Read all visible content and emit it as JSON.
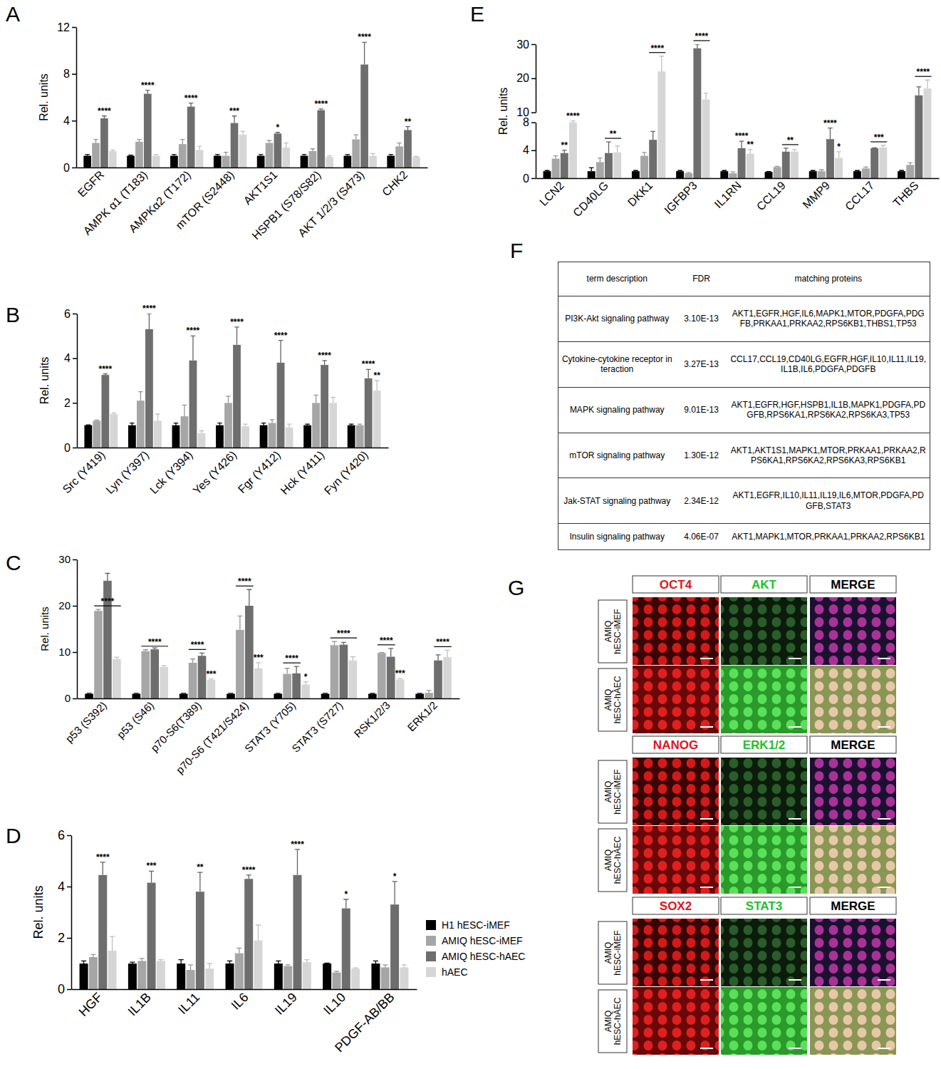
{
  "chart_data": [
    {
      "type": "bar",
      "title": "A",
      "y_label": "Rel. units",
      "categories": [
        "EGFR",
        "AMPK α1 (T183)",
        "AMPKα2 (T172)",
        "mTOR (S2448)",
        "AKT1S1",
        "HSPB1 (S78/S82)",
        "AKT 1/2/3 (S473)",
        "CHK2"
      ],
      "series": [
        {
          "color": "#000000",
          "values": [
            1.0,
            1.0,
            1.0,
            1.0,
            1.0,
            1.0,
            1.0,
            1.0
          ],
          "errors": [
            0.1,
            0.05,
            0.1,
            0.1,
            0.1,
            0.1,
            0.1,
            0.1
          ]
        },
        {
          "color": "#a6a6a6",
          "values": [
            2.1,
            2.2,
            2.0,
            1.0,
            2.1,
            1.4,
            2.4,
            1.8
          ],
          "errors": [
            0.3,
            0.2,
            0.4,
            0.3,
            0.2,
            0.2,
            0.4,
            0.3
          ]
        },
        {
          "color": "#6e6e6e",
          "values": [
            4.2,
            6.3,
            5.2,
            3.8,
            2.9,
            4.9,
            8.8,
            3.2
          ],
          "errors": [
            0.2,
            0.3,
            0.3,
            0.6,
            0.1,
            0.1,
            1.9,
            0.3
          ]
        },
        {
          "color": "#d6d6d6",
          "values": [
            1.4,
            1.0,
            1.5,
            2.8,
            1.7,
            0.9,
            1.0,
            0.9
          ],
          "errors": [
            0.1,
            0.1,
            0.3,
            0.3,
            0.4,
            0.1,
            0.2,
            0.05
          ]
        }
      ],
      "ylim": [
        0,
        12
      ],
      "yticks": [
        0,
        4,
        8,
        12
      ],
      "annotations": [
        {
          "text": "****",
          "category": 0,
          "series": [
            2
          ]
        },
        {
          "text": "****",
          "category": 1,
          "series": [
            2
          ]
        },
        {
          "text": "****",
          "category": 2,
          "series": [
            2
          ]
        },
        {
          "text": "***",
          "category": 3,
          "series": [
            2
          ]
        },
        {
          "text": "*",
          "category": 4,
          "series": [
            2
          ]
        },
        {
          "text": "****",
          "category": 5,
          "series": [
            2
          ]
        },
        {
          "text": "****",
          "category": 6,
          "series": [
            2
          ]
        },
        {
          "text": "**",
          "category": 7,
          "series": [
            2
          ]
        }
      ]
    },
    {
      "type": "bar",
      "title": "B",
      "y_label": "Rel. units",
      "categories": [
        "Src (Y419)",
        "Lyn (Y397)",
        "Lck (Y394)",
        "Yes (Y426)",
        "Fgr (Y412)",
        "Hck (Y411)",
        "Fyn (Y420)"
      ],
      "series": [
        {
          "color": "#000000",
          "values": [
            1.0,
            1.0,
            1.0,
            1.0,
            1.0,
            1.0,
            1.0
          ],
          "errors": [
            0.02,
            0.1,
            0.1,
            0.1,
            0.1,
            0.05,
            0.05
          ]
        },
        {
          "color": "#a6a6a6",
          "values": [
            1.2,
            2.1,
            1.4,
            2.0,
            1.1,
            2.0,
            1.0
          ],
          "errors": [
            0.03,
            0.4,
            0.5,
            0.3,
            0.15,
            0.35,
            0.05
          ]
        },
        {
          "color": "#6e6e6e",
          "values": [
            3.25,
            5.3,
            3.9,
            4.6,
            3.8,
            3.7,
            3.1
          ],
          "errors": [
            0.05,
            0.7,
            1.1,
            0.8,
            1.0,
            0.2,
            0.4
          ]
        },
        {
          "color": "#d6d6d6",
          "values": [
            1.5,
            1.2,
            0.65,
            0.95,
            0.9,
            2.0,
            2.55
          ],
          "errors": [
            0.05,
            0.3,
            0.1,
            0.1,
            0.15,
            0.25,
            0.45
          ]
        }
      ],
      "ylim": [
        0,
        6
      ],
      "yticks": [
        0,
        2,
        4,
        6
      ],
      "annotations": [
        {
          "text": "****",
          "category": 0,
          "series": [
            2
          ]
        },
        {
          "text": "****",
          "category": 1,
          "series": [
            2
          ]
        },
        {
          "text": "****",
          "category": 2,
          "series": [
            2
          ]
        },
        {
          "text": "****",
          "category": 3,
          "series": [
            2
          ]
        },
        {
          "text": "****",
          "category": 4,
          "series": [
            2
          ]
        },
        {
          "text": "****",
          "category": 5,
          "series": [
            2
          ]
        },
        {
          "text": "****",
          "category": 6,
          "series": [
            2
          ]
        },
        {
          "text": "**",
          "category": 6,
          "series": [
            3
          ]
        }
      ]
    },
    {
      "type": "bar",
      "title": "C",
      "y_label": "Rel. units",
      "categories": [
        "p53 (S392)",
        "p53 (S46)",
        "p70-S6(T389)",
        "p70-S6 (T421/S424)",
        "STAT3 (Y705)",
        "STAT3 (S727)",
        "RSK1/2/3",
        "ERK1/2"
      ],
      "series": [
        {
          "color": "#000000",
          "values": [
            1.0,
            1.0,
            1.0,
            1.0,
            1.0,
            1.0,
            1.0,
            1.0
          ],
          "errors": [
            0.1,
            0.1,
            0.1,
            0.1,
            0.1,
            0.1,
            0.1,
            0.1
          ]
        },
        {
          "color": "#a6a6a6",
          "values": [
            18.9,
            10.2,
            7.7,
            14.8,
            5.3,
            11.5,
            9.8,
            1.2
          ],
          "errors": [
            0.3,
            0.3,
            0.8,
            3.0,
            1.2,
            0.8,
            0.1,
            0.5
          ]
        },
        {
          "color": "#6e6e6e",
          "values": [
            25.4,
            10.6,
            9.2,
            20.0,
            5.4,
            11.6,
            9.0,
            8.2
          ],
          "errors": [
            1.6,
            0.3,
            0.6,
            3.5,
            1.5,
            0.5,
            1.8,
            1.2
          ]
        },
        {
          "color": "#d6d6d6",
          "values": [
            8.5,
            6.8,
            4.0,
            6.5,
            3.0,
            8.2,
            4.1,
            8.9
          ],
          "errors": [
            0.4,
            0.3,
            0.2,
            1.2,
            0.6,
            0.8,
            0.2,
            1.5
          ]
        }
      ],
      "ylim": [
        0,
        30
      ],
      "yticks": [
        0,
        10,
        20,
        30
      ],
      "annotations": [
        {
          "text": "****",
          "category": 0,
          "series": [
            1,
            3
          ]
        },
        {
          "text": "****",
          "category": 1,
          "series": [
            1,
            3
          ]
        },
        {
          "text": "****",
          "category": 2,
          "series": [
            1,
            2
          ]
        },
        {
          "text": "***",
          "category": 2,
          "series": [
            3
          ]
        },
        {
          "text": "****",
          "category": 3,
          "series": [
            1,
            2
          ]
        },
        {
          "text": "***",
          "category": 3,
          "series": [
            3
          ]
        },
        {
          "text": "****",
          "category": 4,
          "series": [
            1,
            2
          ]
        },
        {
          "text": "*",
          "category": 4,
          "series": [
            3
          ]
        },
        {
          "text": "****",
          "category": 5,
          "series": [
            1,
            3
          ]
        },
        {
          "text": "****",
          "category": 6,
          "series": [
            1,
            2
          ]
        },
        {
          "text": "***",
          "category": 6,
          "series": [
            3
          ]
        },
        {
          "text": "****",
          "category": 7,
          "series": [
            2,
            3
          ]
        }
      ]
    },
    {
      "type": "bar",
      "title": "D",
      "y_label": "Rel. units",
      "legend": "right",
      "categories": [
        "HGF",
        "IL1B",
        "IL11",
        "IL6",
        "IL19",
        "IL10",
        "PDGF-AB/BB"
      ],
      "series": [
        {
          "name": "H1 hESC-iMEF",
          "color": "#000000",
          "values": [
            1.0,
            1.0,
            1.0,
            1.0,
            1.0,
            1.0,
            1.0
          ],
          "errors": [
            0.1,
            0.05,
            0.15,
            0.1,
            0.1,
            0.02,
            0.1
          ]
        },
        {
          "name": "AMIQ hESC-iMEF",
          "color": "#a6a6a6",
          "values": [
            1.25,
            1.1,
            0.75,
            1.4,
            0.9,
            0.65,
            0.85
          ],
          "errors": [
            0.1,
            0.1,
            0.2,
            0.2,
            0.05,
            0.05,
            0.1
          ]
        },
        {
          "name": "AMIQ hESC-hAEC",
          "color": "#6e6e6e",
          "values": [
            4.45,
            4.15,
            3.8,
            4.3,
            4.45,
            3.15,
            3.3
          ],
          "errors": [
            0.5,
            0.45,
            0.75,
            0.15,
            1.0,
            0.35,
            0.9
          ]
        },
        {
          "name": "hAEC",
          "color": "#d6d6d6",
          "values": [
            1.5,
            1.1,
            0.8,
            1.9,
            1.05,
            0.8,
            0.85
          ],
          "errors": [
            0.55,
            0.05,
            0.2,
            0.6,
            0.1,
            0.03,
            0.1
          ]
        }
      ],
      "ylim": [
        0,
        6
      ],
      "yticks": [
        0,
        2,
        4,
        6
      ],
      "annotations": [
        {
          "text": "****",
          "category": 0,
          "series": [
            2
          ]
        },
        {
          "text": "***",
          "category": 1,
          "series": [
            2
          ]
        },
        {
          "text": "**",
          "category": 2,
          "series": [
            2
          ]
        },
        {
          "text": "****",
          "category": 3,
          "series": [
            2
          ]
        },
        {
          "text": "****",
          "category": 4,
          "series": [
            2
          ]
        },
        {
          "text": "*",
          "category": 5,
          "series": [
            2
          ]
        },
        {
          "text": "*",
          "category": 6,
          "series": [
            2
          ]
        }
      ]
    },
    {
      "type": "bar",
      "title": "E",
      "y_label": "Rel. units",
      "categories": [
        "LCN2",
        "CD40LG",
        "DKK1",
        "IGFBP3",
        "IL1RN",
        "CCL19",
        "MMP9",
        "CCL17",
        "THBS"
      ],
      "series": [
        {
          "color": "#000000",
          "values": [
            1.0,
            1.0,
            1.0,
            1.0,
            1.0,
            0.9,
            1.0,
            1.0,
            1.0
          ],
          "errors": [
            0.1,
            0.5,
            0.1,
            0.1,
            0.1,
            0.05,
            0.1,
            0.1,
            0.1
          ]
        },
        {
          "color": "#a6a6a6",
          "values": [
            2.8,
            2.3,
            3.2,
            0.7,
            0.7,
            1.6,
            1.0,
            1.4,
            1.9
          ],
          "errors": [
            0.4,
            0.6,
            0.5,
            0.1,
            0.2,
            0.1,
            0.2,
            0.2,
            0.3
          ]
        },
        {
          "color": "#6e6e6e",
          "values": [
            3.6,
            3.6,
            5.5,
            28.8,
            4.3,
            3.8,
            5.6,
            4.3,
            15.0
          ],
          "errors": [
            0.4,
            1.6,
            1.2,
            1.2,
            1.0,
            0.5,
            1.6,
            0.05,
            2.5
          ]
        },
        {
          "color": "#d6d6d6",
          "values": [
            8.0,
            3.7,
            22.0,
            13.8,
            3.5,
            3.8,
            2.9,
            4.4,
            17.0
          ],
          "errors": [
            0.3,
            0.9,
            4.5,
            1.8,
            0.6,
            0.3,
            0.9,
            0.3,
            2.5
          ]
        }
      ],
      "ylim": [
        0,
        30
      ],
      "yticks": [
        0,
        4,
        8,
        10,
        20,
        30
      ],
      "ybreak": [
        8,
        10
      ],
      "annotations": [
        {
          "text": "**",
          "category": 0,
          "series": [
            2
          ]
        },
        {
          "text": "****",
          "category": 0,
          "series": [
            3
          ]
        },
        {
          "text": "**",
          "category": 1,
          "series": [
            2,
            3
          ]
        },
        {
          "text": "****",
          "category": 2,
          "series": [
            2,
            3
          ]
        },
        {
          "text": "****",
          "category": 3,
          "series": [
            2,
            3
          ]
        },
        {
          "text": "****",
          "category": 4,
          "series": [
            2
          ]
        },
        {
          "text": "**",
          "category": 4,
          "series": [
            3
          ]
        },
        {
          "text": "**",
          "category": 5,
          "series": [
            2,
            3
          ]
        },
        {
          "text": "****",
          "category": 6,
          "series": [
            2
          ]
        },
        {
          "text": "*",
          "category": 6,
          "series": [
            3
          ]
        },
        {
          "text": "***",
          "category": 7,
          "series": [
            2,
            3
          ]
        },
        {
          "text": "****",
          "category": 8,
          "series": [
            2,
            3
          ]
        }
      ]
    }
  ],
  "table": {
    "title": "F",
    "header": [
      "term description",
      "FDR",
      "matching proteins"
    ],
    "rows": [
      [
        "PI3K-Akt signaling pathway",
        "3.10E-13",
        "AKT1,EGFR,HGF,IL6,MAPK1,MTOR,PDGFA,PDGFB,PRKAA1,PRKAA2,RPS6KB1,THBS1,TP53"
      ],
      [
        "Cytokine-cytokine receptor interaction",
        "3.27E-13",
        "CCL17,CCL19,CD40LG,EGFR,HGF,IL10,IL11,IL19,IL1B,IL6,PDGFA,PDGFB"
      ],
      [
        "MAPK signaling pathway",
        "9.01E-13",
        "AKT1,EGFR,HGF,HSPB1,IL1B,MAPK1,PDGFA,PDGFB,RPS6KA1,RPS6KA2,RPS6KA3,TP53"
      ],
      [
        "mTOR signaling pathway",
        "1.30E-12",
        "AKT1,AKT1S1,MAPK1,MTOR,PRKAA1,PRKAA2,RPS6KA1,RPS6KA2,RPS6KA3,RPS6KB1"
      ],
      [
        "Jak-STAT signaling pathway",
        "2.34E-12",
        "AKT1,EGFR,IL10,IL11,IL19,IL6,MTOR,PDGFA,PDGFB,STAT3"
      ],
      [
        "Insulin signaling pathway",
        "4.06E-07",
        "AKT1,MAPK1,MTOR,PRKAA1,PRKAA2,RPS6KB1"
      ]
    ]
  },
  "images": {
    "title": "G",
    "rows": [
      "AMIQ hESC-iMEF",
      "AMIQ hESC-hAEC"
    ],
    "blocks": [
      [
        "OCT4",
        "AKT",
        "MERGE"
      ],
      [
        "NANOG",
        "ERK1/2",
        "MERGE"
      ],
      [
        "SOX2",
        "STAT3",
        "MERGE"
      ]
    ]
  }
}
